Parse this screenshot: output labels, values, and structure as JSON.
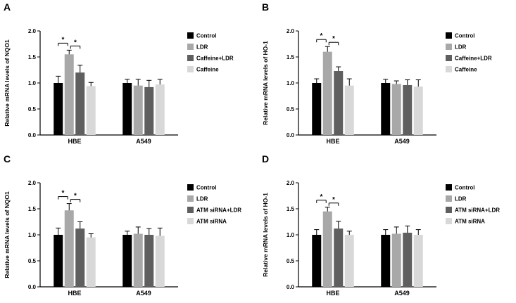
{
  "figure": {
    "background": "#ffffff",
    "axis_color": "#000000"
  },
  "chart_data": [
    {
      "panel": "A",
      "type": "bar",
      "ylabel": "Relative mRNA levels of NQO1",
      "ylim": [
        0,
        2.0
      ],
      "yticks": [
        0,
        0.5,
        1.0,
        1.5,
        2.0
      ],
      "categories": [
        "HBE",
        "A549"
      ],
      "legend_position": "right",
      "grid": false,
      "series": [
        {
          "name": "Control",
          "color": "#000000",
          "values": [
            1.0,
            1.0
          ],
          "errors": [
            0.13,
            0.07
          ]
        },
        {
          "name": "LDR",
          "color": "#a8a8a8",
          "values": [
            1.55,
            0.95
          ],
          "errors": [
            0.08,
            0.12
          ]
        },
        {
          "name": "Caffeine+LDR",
          "color": "#5f5f5f",
          "values": [
            1.2,
            0.92
          ],
          "errors": [
            0.14,
            0.13
          ]
        },
        {
          "name": "Caffeine",
          "color": "#d8d8d8",
          "values": [
            0.94,
            0.97
          ],
          "errors": [
            0.07,
            0.1
          ]
        }
      ],
      "significance": [
        {
          "group": 0,
          "from": 0,
          "to": 1,
          "label": "*"
        },
        {
          "group": 0,
          "from": 1,
          "to": 2,
          "label": "*"
        }
      ]
    },
    {
      "panel": "B",
      "type": "bar",
      "ylabel": "Relative mRNA levels of HO-1",
      "ylim": [
        0,
        2.0
      ],
      "yticks": [
        0,
        0.5,
        1.0,
        1.5,
        2.0
      ],
      "categories": [
        "HBE",
        "A549"
      ],
      "legend_position": "right",
      "grid": false,
      "series": [
        {
          "name": "Control",
          "color": "#000000",
          "values": [
            1.0,
            1.0
          ],
          "errors": [
            0.08,
            0.07
          ]
        },
        {
          "name": "LDR",
          "color": "#a8a8a8",
          "values": [
            1.6,
            0.98
          ],
          "errors": [
            0.1,
            0.06
          ]
        },
        {
          "name": "Caffeine+LDR",
          "color": "#5f5f5f",
          "values": [
            1.23,
            0.96
          ],
          "errors": [
            0.08,
            0.1
          ]
        },
        {
          "name": "Caffeine",
          "color": "#d8d8d8",
          "values": [
            0.95,
            0.93
          ],
          "errors": [
            0.13,
            0.13
          ]
        }
      ],
      "significance": [
        {
          "group": 0,
          "from": 0,
          "to": 1,
          "label": "*"
        },
        {
          "group": 0,
          "from": 1,
          "to": 2,
          "label": "*"
        }
      ]
    },
    {
      "panel": "C",
      "type": "bar",
      "ylabel": "Relative mRNA levels of NQO1",
      "ylim": [
        0,
        2.0
      ],
      "yticks": [
        0,
        0.5,
        1.0,
        1.5,
        2.0
      ],
      "categories": [
        "HBE",
        "A549"
      ],
      "legend_position": "right",
      "grid": false,
      "series": [
        {
          "name": "Control",
          "color": "#000000",
          "values": [
            1.0,
            1.0
          ],
          "errors": [
            0.13,
            0.07
          ]
        },
        {
          "name": "LDR",
          "color": "#a8a8a8",
          "values": [
            1.47,
            1.02
          ],
          "errors": [
            0.13,
            0.13
          ]
        },
        {
          "name": "ATM siRNA+LDR",
          "color": "#5f5f5f",
          "values": [
            1.12,
            1.0
          ],
          "errors": [
            0.13,
            0.12
          ]
        },
        {
          "name": "ATM siRNA",
          "color": "#d8d8d8",
          "values": [
            0.95,
            0.98
          ],
          "errors": [
            0.07,
            0.15
          ]
        }
      ],
      "significance": [
        {
          "group": 0,
          "from": 0,
          "to": 1,
          "label": "*"
        },
        {
          "group": 0,
          "from": 1,
          "to": 2,
          "label": "*"
        }
      ]
    },
    {
      "panel": "D",
      "type": "bar",
      "ylabel": "Relative mRNA levels of HO-1",
      "ylim": [
        0,
        2.0
      ],
      "yticks": [
        0,
        0.5,
        1.0,
        1.5,
        2.0
      ],
      "categories": [
        "HBE",
        "A549"
      ],
      "legend_position": "right",
      "grid": false,
      "series": [
        {
          "name": "Control",
          "color": "#000000",
          "values": [
            1.0,
            1.0
          ],
          "errors": [
            0.1,
            0.1
          ]
        },
        {
          "name": "LDR",
          "color": "#a8a8a8",
          "values": [
            1.45,
            1.02
          ],
          "errors": [
            0.08,
            0.13
          ]
        },
        {
          "name": "ATM siRNA+LDR",
          "color": "#5f5f5f",
          "values": [
            1.12,
            1.04
          ],
          "errors": [
            0.14,
            0.13
          ]
        },
        {
          "name": "ATM siRNA",
          "color": "#d8d8d8",
          "values": [
            1.0,
            1.0
          ],
          "errors": [
            0.07,
            0.1
          ]
        }
      ],
      "significance": [
        {
          "group": 0,
          "from": 0,
          "to": 1,
          "label": "*"
        },
        {
          "group": 0,
          "from": 1,
          "to": 2,
          "label": "*"
        }
      ]
    }
  ]
}
